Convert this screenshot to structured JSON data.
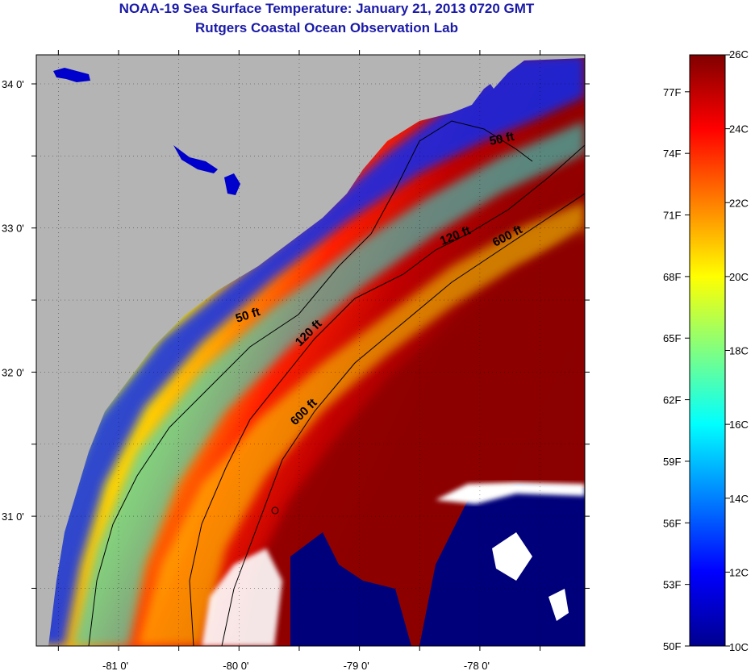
{
  "header": {
    "title": "NOAA-19 Sea Surface Temperature:  January 21, 2013 0720 GMT",
    "subtitle": "Rutgers Coastal Ocean Observation Lab"
  },
  "map": {
    "lat_ticks": [
      {
        "value": 34,
        "label": "34 0'"
      },
      {
        "value": 33,
        "label": "33 0'"
      },
      {
        "value": 32,
        "label": "32 0'"
      },
      {
        "value": 31,
        "label": "31 0'"
      }
    ],
    "lon_ticks": [
      {
        "value": -81,
        "label": "-81 0'"
      },
      {
        "value": -80,
        "label": "-80 0'"
      },
      {
        "value": -79,
        "label": "-79 0'"
      },
      {
        "value": -78,
        "label": "-78 0'"
      }
    ],
    "contour_labels": [
      "50 ft",
      "50 ft",
      "120 ft",
      "120 ft",
      "600 ft",
      "600 ft"
    ],
    "colors": {
      "land": "#b4b4b4",
      "cloud": "#ffffff",
      "contour": "#000000"
    }
  },
  "colorbar": {
    "celsius_labels": [
      "26C",
      "24C",
      "22C",
      "20C",
      "18C",
      "16C",
      "14C",
      "12C",
      "10C"
    ],
    "fahrenheit_labels": [
      "77F",
      "74F",
      "71F",
      "68F",
      "65F",
      "62F",
      "59F",
      "56F",
      "53F",
      "50F"
    ],
    "colors": [
      "#00008f",
      "#0000ff",
      "#0080ff",
      "#00ffff",
      "#80ff80",
      "#ffff00",
      "#ff8000",
      "#ff0000",
      "#800000"
    ]
  }
}
